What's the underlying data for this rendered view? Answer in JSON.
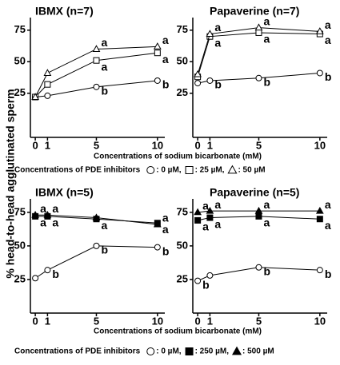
{
  "y_label": "% head-to-head agglutinated sperm",
  "chart_data": [
    {
      "type": "line",
      "title": "IBMX (n=7)",
      "x_label": "Concentrations of sodium bicarbonate (mM)",
      "legend_title": "Concentrations of PDE inhibitors",
      "x": [
        0,
        1,
        5,
        10
      ],
      "xlim": [
        -0.4,
        10.6
      ],
      "xticks": [
        0,
        1,
        5,
        10
      ],
      "ylim": [
        -10,
        85
      ],
      "yticks": [
        25,
        50,
        75
      ],
      "series": [
        {
          "name": ": 0 µM,",
          "marker": "circle",
          "fill": "#ffffff",
          "color": "#000000",
          "values": [
            22,
            23,
            30,
            35
          ],
          "letters": [
            null,
            null,
            "b",
            "b"
          ]
        },
        {
          "name": ": 25 µM,",
          "marker": "square",
          "fill": "#ffffff",
          "color": "#000000",
          "values": [
            22,
            32,
            51,
            57
          ],
          "letters": [
            null,
            null,
            "a",
            "a"
          ]
        },
        {
          "name": ": 50 µM",
          "marker": "triangle",
          "fill": "#ffffff",
          "color": "#000000",
          "values": [
            22,
            41,
            60,
            62
          ],
          "letters": [
            null,
            null,
            "a",
            "a"
          ]
        }
      ]
    },
    {
      "type": "line",
      "title": "Papaverine (n=7)",
      "x": [
        0,
        1,
        5,
        10
      ],
      "xlim": [
        -0.4,
        10.6
      ],
      "xticks": [
        0,
        1,
        5,
        10
      ],
      "ylim": [
        -10,
        85
      ],
      "yticks": [
        25,
        50,
        75
      ],
      "series": [
        {
          "marker": "circle",
          "fill": "#ffffff",
          "color": "#000000",
          "values": [
            33,
            35,
            37,
            41
          ],
          "letters": [
            null,
            "b",
            "b",
            "b"
          ]
        },
        {
          "marker": "square",
          "fill": "#ffffff",
          "color": "#000000",
          "values": [
            38,
            70,
            73,
            72
          ],
          "letters": [
            null,
            "a",
            "a",
            "a"
          ]
        },
        {
          "marker": "triangle",
          "fill": "#ffffff",
          "color": "#000000",
          "values": [
            40,
            72,
            77,
            74
          ],
          "letters": [
            null,
            "a",
            "a",
            "a"
          ]
        }
      ]
    },
    {
      "type": "line",
      "title": "IBMX (n=5)",
      "x_label": "Concentrations of sodium bicarbonate (mM)",
      "legend_title": "Concentrations of PDE inhibitors",
      "x": [
        0,
        1,
        5,
        10
      ],
      "xlim": [
        -0.4,
        10.6
      ],
      "xticks": [
        0,
        1,
        5,
        10
      ],
      "ylim": [
        0,
        85
      ],
      "yticks": [
        25,
        50,
        75
      ],
      "series": [
        {
          "name": ": 0 µM,",
          "marker": "circle",
          "fill": "#ffffff",
          "color": "#000000",
          "values": [
            26,
            32,
            50,
            49
          ],
          "letters": [
            null,
            "b",
            "b",
            "b"
          ]
        },
        {
          "name": ": 250 µM,",
          "marker": "square",
          "fill": "#000000",
          "color": "#000000",
          "values": [
            72,
            72,
            70,
            67
          ],
          "letters": [
            "a",
            "a",
            "a",
            "a"
          ]
        },
        {
          "name": ": 500 µM",
          "marker": "triangle",
          "fill": "#000000",
          "color": "#000000",
          "values": [
            73,
            73,
            71,
            66
          ],
          "letters": [
            "a",
            "a",
            null,
            "a"
          ]
        }
      ]
    },
    {
      "type": "line",
      "title": "Papaverine (n=5)",
      "x": [
        0,
        1,
        5,
        10
      ],
      "xlim": [
        -0.4,
        10.6
      ],
      "xticks": [
        0,
        1,
        5,
        10
      ],
      "ylim": [
        0,
        85
      ],
      "yticks": [
        25,
        50,
        75
      ],
      "series": [
        {
          "marker": "circle",
          "fill": "#ffffff",
          "color": "#000000",
          "values": [
            24,
            28,
            34,
            32
          ],
          "letters": [
            "b",
            null,
            "b",
            "b"
          ]
        },
        {
          "marker": "square",
          "fill": "#000000",
          "color": "#000000",
          "values": [
            69,
            71,
            72,
            70
          ],
          "letters": [
            "a",
            "a",
            "a",
            "a"
          ]
        },
        {
          "marker": "triangle",
          "fill": "#000000",
          "color": "#000000",
          "values": [
            75,
            76,
            76,
            76
          ],
          "letters": [
            "a",
            "a",
            "a",
            "a"
          ]
        }
      ]
    }
  ]
}
